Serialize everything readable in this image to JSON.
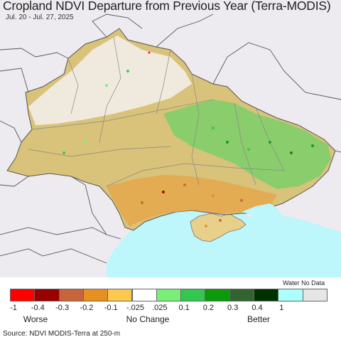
{
  "header": {
    "title": "Cropland NDVI Departure from Previous Year (Terra-MODIS)",
    "subtitle": "Jul. 20 - Jul. 27, 2025"
  },
  "colors": {
    "background_land": "#eeebf0",
    "water": "#bdf6fb",
    "border": "#777777",
    "neutral_cropland": "#ffffff"
  },
  "legend": {
    "categories": [
      {
        "color": "#ff0000"
      },
      {
        "color": "#9b0000"
      },
      {
        "color": "#c8643c"
      },
      {
        "color": "#e88f20"
      },
      {
        "color": "#fdc850"
      },
      {
        "color": "#ffffff"
      },
      {
        "color": "#78f078"
      },
      {
        "color": "#32c850"
      },
      {
        "color": "#0a9a0a"
      },
      {
        "color": "#326432"
      },
      {
        "color": "#003200"
      },
      {
        "color": "#aaffff"
      },
      {
        "color": "#e6e6e6"
      }
    ],
    "tick_labels": [
      "-1",
      "-0.4",
      "-0.3",
      "-0.2",
      "-0.1",
      "-.025",
      ".025",
      "0.1",
      "0.2",
      "0.3",
      "0.4",
      "1"
    ],
    "water_no_data_label": "Water No Data",
    "worse_label": "Worse",
    "no_change_label": "No Change",
    "better_label": "Better"
  },
  "footer": {
    "source": "Source: NDVI MODIS-Terra at 250-m"
  }
}
